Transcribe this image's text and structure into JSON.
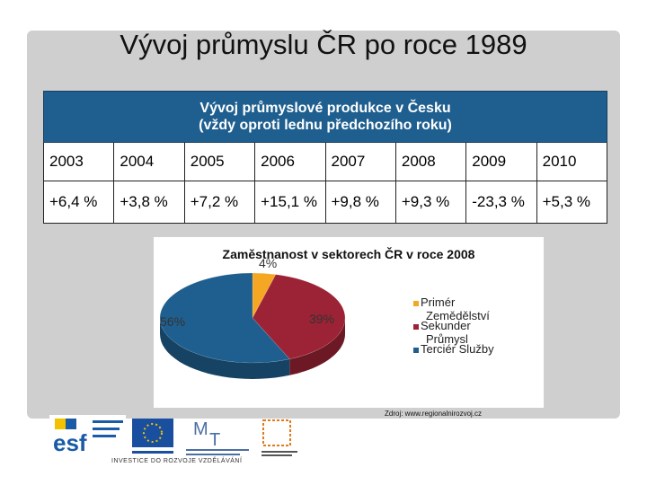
{
  "slide": {
    "title": "Vývoj průmyslu ČR po roce 1989"
  },
  "table": {
    "header_line1": "Vývoj průmyslové produkce v Česku",
    "header_line2": "(vždy oproti lednu předchozího roku)",
    "years": [
      "2003",
      "2004",
      "2005",
      "2006",
      "2007",
      "2008",
      "2009",
      "2010"
    ],
    "values": [
      "+6,4 %",
      "+3,8 %",
      "+7,2 %",
      "+15,1 %",
      "+9,8 %",
      "+9,3 %",
      "-23,3 %",
      "+5,3 %"
    ]
  },
  "chart_data": {
    "type": "pie",
    "title": "Zaměstnanost v sektorech ČR v roce 2008",
    "slices": [
      {
        "label": "Primér Zemědělství",
        "value": 4,
        "data_label": "4%",
        "color": "#f5a623"
      },
      {
        "label": "Sekunder Průmysl",
        "value": 39,
        "data_label": "39%",
        "color": "#9b2335"
      },
      {
        "label": "Terciér Služby",
        "value": 56,
        "data_label": "56%",
        "color": "#1f5f8f"
      }
    ],
    "legend_position": "right"
  },
  "legend": [
    "Primér",
    "Zemědělství",
    "Sekunder",
    "Průmysl",
    "Terciér Služby"
  ],
  "source": "Zdroj: www.regionalnirozvoj.cz",
  "logos": {
    "caption": "INVESTICE DO ROZVOJE VZDĚLÁVÁNÍ",
    "esf_text": "esf"
  },
  "colors": {
    "header": "#1f5f8f",
    "primary": "#f5a623",
    "secondary": "#9b2335",
    "tertiary": "#1f5f8f"
  }
}
